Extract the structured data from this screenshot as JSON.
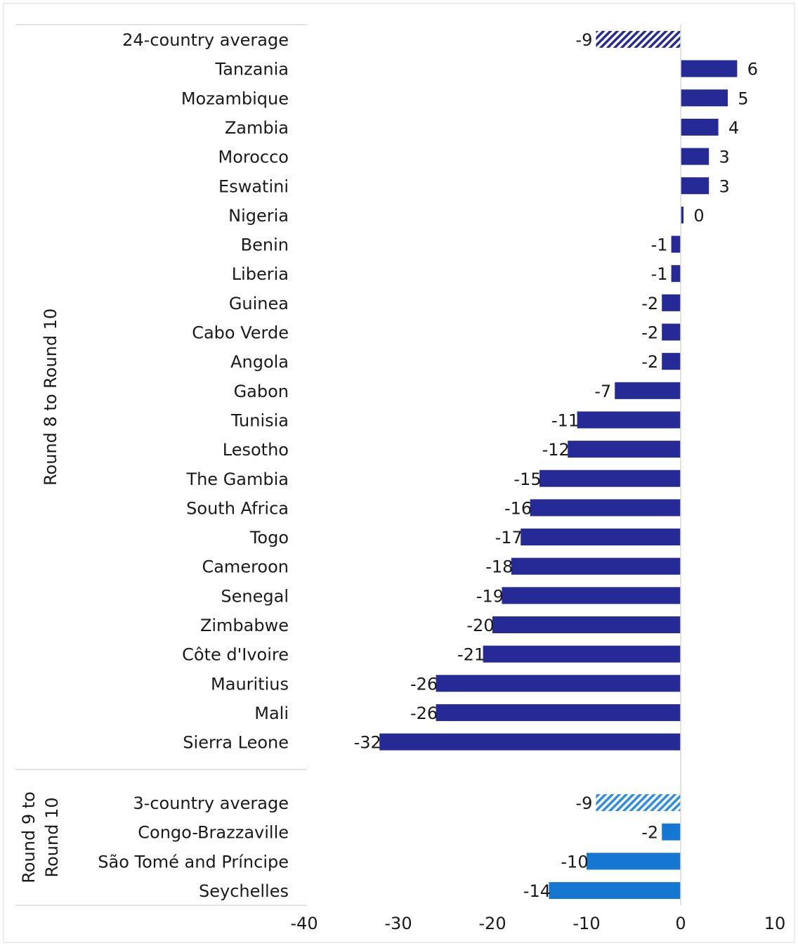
{
  "chart_data": {
    "type": "bar",
    "orientation": "horizontal",
    "xlim": [
      -40,
      10
    ],
    "xticks": [
      "-40",
      "-30",
      "-20",
      "-10",
      "0",
      "10"
    ],
    "grid": false,
    "colors": {
      "group1": "#262a97",
      "group2": "#1577d2",
      "average_group1_hatch": "#262a97",
      "average_group2_hatch": "#2b8ee0"
    },
    "groups": [
      {
        "label": "Round 8 to Round 10",
        "color_key": "group1",
        "categories": [
          {
            "name": "24-country average",
            "value": -9,
            "label": "-9",
            "hatched": true
          },
          {
            "name": "Tanzania",
            "value": 6,
            "label": "6"
          },
          {
            "name": "Mozambique",
            "value": 5,
            "label": "5"
          },
          {
            "name": "Zambia",
            "value": 4,
            "label": "4"
          },
          {
            "name": "Morocco",
            "value": 3,
            "label": "3"
          },
          {
            "name": "Eswatini",
            "value": 3,
            "label": "3"
          },
          {
            "name": "Nigeria",
            "value": 0.3,
            "label": "0"
          },
          {
            "name": "Benin",
            "value": -1,
            "label": "-1"
          },
          {
            "name": "Liberia",
            "value": -1,
            "label": "-1"
          },
          {
            "name": "Guinea",
            "value": -2,
            "label": "-2"
          },
          {
            "name": "Cabo Verde",
            "value": -2,
            "label": "-2"
          },
          {
            "name": "Angola",
            "value": -2,
            "label": "-2"
          },
          {
            "name": "Gabon",
            "value": -7,
            "label": "-7"
          },
          {
            "name": "Tunisia",
            "value": -11,
            "label": "-11"
          },
          {
            "name": "Lesotho",
            "value": -12,
            "label": "-12"
          },
          {
            "name": "The Gambia",
            "value": -15,
            "label": "-15"
          },
          {
            "name": "South Africa",
            "value": -16,
            "label": "-16"
          },
          {
            "name": "Togo",
            "value": -17,
            "label": "-17"
          },
          {
            "name": "Cameroon",
            "value": -18,
            "label": "-18"
          },
          {
            "name": "Senegal",
            "value": -19,
            "label": "-19"
          },
          {
            "name": "Zimbabwe",
            "value": -20,
            "label": "-20"
          },
          {
            "name": "Côte d'Ivoire",
            "value": -21,
            "label": "-21"
          },
          {
            "name": "Mauritius",
            "value": -26,
            "label": "-26"
          },
          {
            "name": "Mali",
            "value": -26,
            "label": "-26"
          },
          {
            "name": "Sierra Leone",
            "value": -32,
            "label": "-32"
          }
        ]
      },
      {
        "label": "Round 9 to Round 10",
        "label_lines": [
          "Round 9 to",
          "Round 10"
        ],
        "color_key": "group2",
        "categories": [
          {
            "name": "3-country average",
            "value": -9,
            "label": "-9",
            "hatched": true
          },
          {
            "name": "Congo-Brazzaville",
            "value": -2,
            "label": "-2"
          },
          {
            "name": "São Tomé and Príncipe",
            "value": -10,
            "label": "-10"
          },
          {
            "name": "Seychelles",
            "value": -14,
            "label": "-14"
          }
        ]
      }
    ]
  }
}
